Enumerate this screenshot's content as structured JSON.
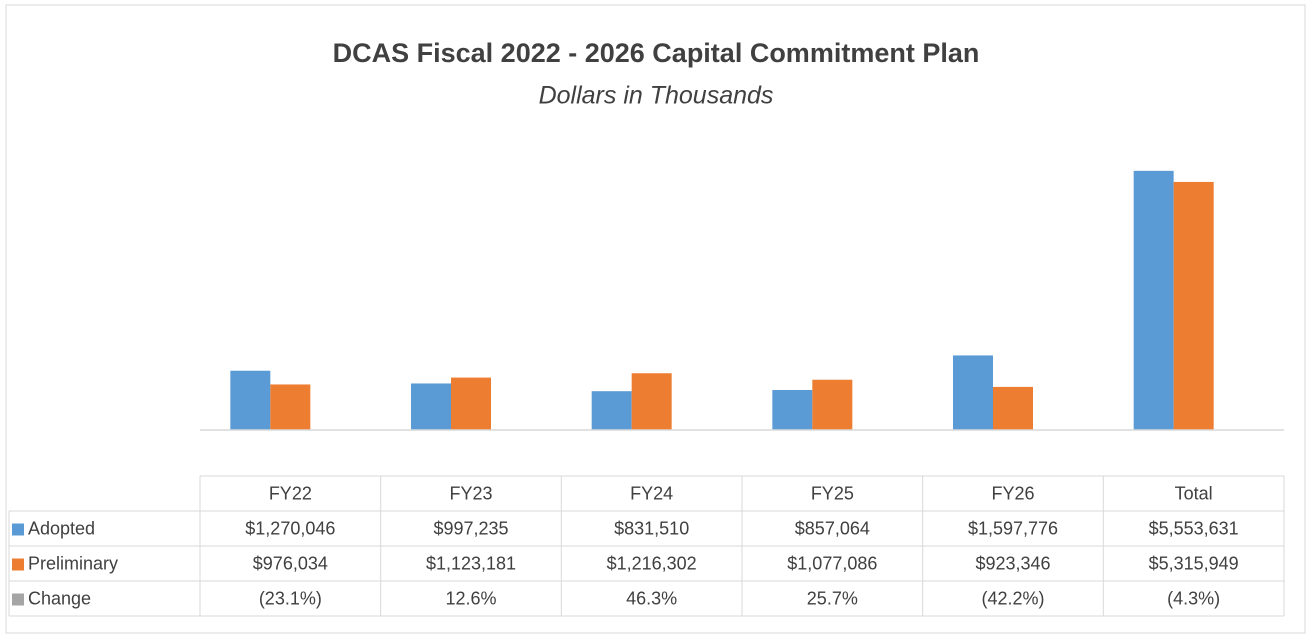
{
  "chart_data": {
    "type": "bar",
    "title": "DCAS Fiscal 2022 - 2026 Capital Commitment Plan",
    "subtitle": "Dollars in Thousands",
    "categories": [
      "FY22",
      "FY23",
      "FY24",
      "FY25",
      "FY26",
      "Total"
    ],
    "series": [
      {
        "name": "Adopted",
        "color": "#5b9bd5",
        "values": [
          1270046,
          997235,
          831510,
          857064,
          1597776,
          5553631
        ],
        "value_labels": [
          "$1,270,046",
          "$997,235",
          "$831,510",
          "$857,064",
          "$1,597,776",
          "$5,553,631"
        ]
      },
      {
        "name": "Preliminary",
        "color": "#ed7d31",
        "values": [
          976034,
          1123181,
          1216302,
          1077086,
          923346,
          5315949
        ],
        "value_labels": [
          "$976,034",
          "$1,123,181",
          "$1,216,302",
          "$1,077,086",
          "$923,346",
          "$5,315,949"
        ]
      },
      {
        "name": "Change",
        "color": "#a5a5a5",
        "values": [
          -23.1,
          12.6,
          46.3,
          25.7,
          -42.2,
          -4.3
        ],
        "value_labels": [
          "(23.1%)",
          "12.6%",
          "46.3%",
          "25.7%",
          "(42.2%)",
          "(4.3%)"
        ]
      }
    ],
    "ylim": [
      0,
      6000000
    ]
  }
}
